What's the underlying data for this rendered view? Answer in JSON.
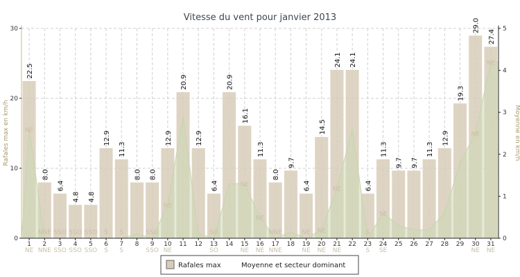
{
  "chart_data": {
    "type": "bar",
    "title": "Vitesse du vent pour janvier 2013",
    "categories": [
      "1",
      "2",
      "3",
      "4",
      "5",
      "6",
      "7",
      "8",
      "9",
      "10",
      "11",
      "12",
      "13",
      "14",
      "15",
      "16",
      "17",
      "18",
      "19",
      "20",
      "21",
      "22",
      "23",
      "24",
      "25",
      "26",
      "27",
      "28",
      "29",
      "30",
      "31"
    ],
    "series": [
      {
        "name": "Rafales max",
        "axis": "left",
        "values": [
          22.5,
          8.0,
          6.4,
          4.8,
          4.8,
          12.9,
          11.3,
          8.0,
          8.0,
          12.9,
          20.9,
          12.9,
          6.4,
          20.9,
          16.1,
          11.3,
          8.0,
          9.7,
          6.4,
          14.5,
          24.1,
          24.1,
          6.4,
          11.3,
          9.7,
          9.7,
          11.3,
          12.9,
          19.3,
          29.0,
          27.4
        ],
        "value_labels": [
          "22.5",
          "8.0",
          "6.4",
          "4.8",
          "4.8",
          "12.9",
          "11.3",
          "8.0",
          "8.0",
          "12.9",
          "20.9",
          "12.9",
          "6.4",
          "20.9",
          "16.1",
          "11.3",
          "8.0",
          "9.7",
          "6.4",
          "14.5",
          "24.1",
          "24.1",
          "6.4",
          "11.3",
          "9.7",
          "9.7",
          "11.3",
          "12.9",
          "19.3",
          "29.0",
          "27.4"
        ],
        "color": "#d8ccb8"
      },
      {
        "name": "Moyenne et secteur dominant",
        "axis": "right",
        "type": "area",
        "values": [
          2.6,
          0.0,
          0.0,
          0.0,
          0.0,
          0.0,
          0.0,
          0.1,
          0.0,
          0.8,
          2.9,
          0.1,
          0.0,
          1.3,
          1.3,
          0.5,
          0.0,
          0.15,
          0.0,
          0.2,
          1.2,
          2.6,
          0.0,
          0.6,
          0.3,
          0.2,
          0.2,
          0.6,
          1.8,
          2.5,
          4.2
        ],
        "secteur": [
          "NE",
          "NNE",
          "SSO",
          "SSO",
          "SSO",
          "S",
          "S",
          "",
          "SSO",
          "NE",
          "",
          "",
          "SO",
          "",
          "NE",
          "NE",
          "NNE",
          "",
          "NE",
          "NE",
          "NE",
          "",
          "S",
          "SE",
          "",
          "",
          "",
          "",
          "",
          "NE",
          "NE"
        ],
        "color": "#ccd8b4"
      }
    ],
    "xlabel": "",
    "ylabel": "Rafales max en km/h",
    "y2label": "Moyenne en km/h",
    "ylim": [
      0,
      30
    ],
    "y2lim": [
      0,
      5
    ],
    "yticks": [
      "0",
      "10",
      "20",
      "30"
    ],
    "y2ticks": [
      "0",
      "1",
      "2",
      "3",
      "4",
      "5"
    ],
    "grid": true,
    "legend_position": "bottom-center"
  }
}
